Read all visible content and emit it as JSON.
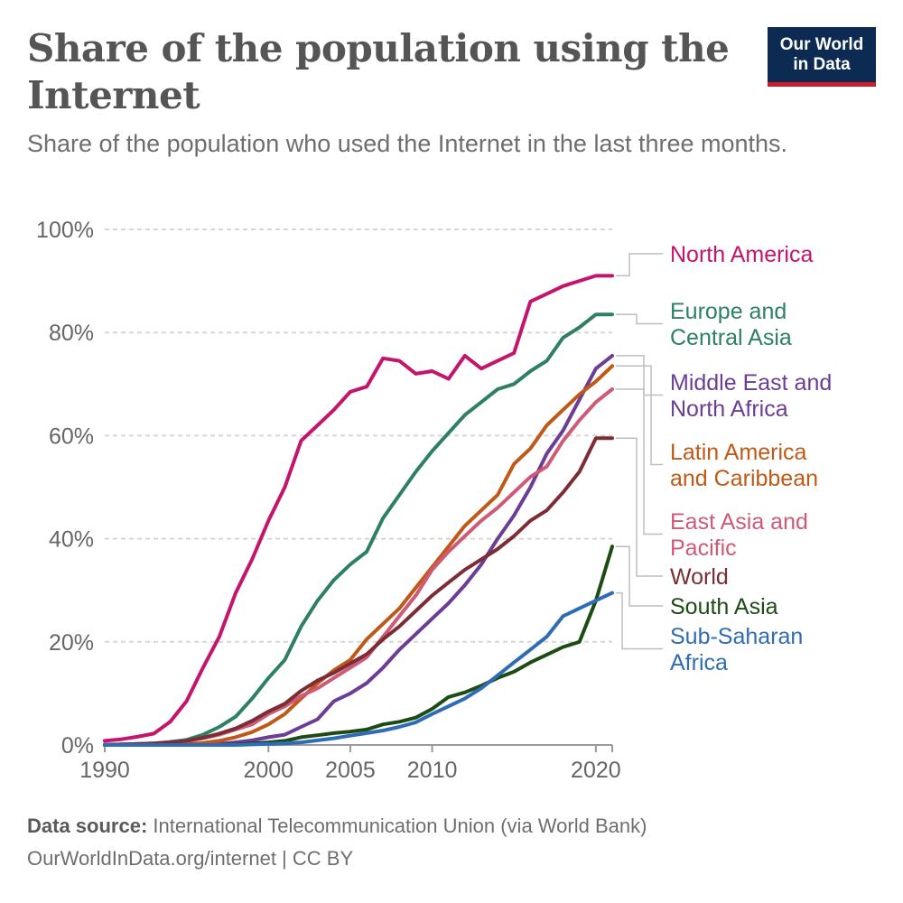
{
  "header": {
    "title": "Share of the population using the Internet",
    "subtitle": "Share of the population who used the Internet in the last three months.",
    "logo_line1": "Our World",
    "logo_line2": "in Data"
  },
  "footer": {
    "source_label": "Data source:",
    "source_text": "International Telecommunication Union (via World Bank)",
    "credit": "OurWorldInData.org/internet | CC BY"
  },
  "chart_data": {
    "type": "line",
    "x_ticks": [
      1990,
      2000,
      2005,
      2010,
      2020
    ],
    "y_ticks": [
      0,
      20,
      40,
      60,
      80,
      100
    ],
    "y_tick_labels": [
      "0%",
      "20%",
      "40%",
      "60%",
      "80%",
      "100%"
    ],
    "xlim": [
      1990,
      2021
    ],
    "ylim": [
      0,
      100
    ],
    "grid": "horizontal dashed",
    "legend": "right, direct labels",
    "series": [
      {
        "name": "North America",
        "color": "#c4146c",
        "x": [
          1990,
          1991,
          1992,
          1993,
          1994,
          1995,
          1996,
          1997,
          1998,
          1999,
          2000,
          2001,
          2002,
          2003,
          2004,
          2005,
          2006,
          2007,
          2008,
          2009,
          2010,
          2011,
          2012,
          2013,
          2014,
          2015,
          2016,
          2017,
          2018,
          2019,
          2020,
          2021
        ],
        "y": [
          0.8,
          1.1,
          1.6,
          2.2,
          4.5,
          8.5,
          15,
          21,
          29.5,
          36,
          43.5,
          50,
          59,
          62,
          65,
          68.5,
          69.5,
          75,
          74.5,
          72,
          72.5,
          71,
          75.5,
          73,
          74.5,
          76,
          86,
          87.5,
          89,
          90,
          91,
          91
        ]
      },
      {
        "name": "Europe and Central Asia",
        "color": "#2e8064",
        "x": [
          1990,
          1991,
          1992,
          1993,
          1994,
          1995,
          1996,
          1997,
          1998,
          1999,
          2000,
          2001,
          2002,
          2003,
          2004,
          2005,
          2006,
          2007,
          2008,
          2009,
          2010,
          2011,
          2012,
          2013,
          2014,
          2015,
          2016,
          2017,
          2018,
          2019,
          2020,
          2021
        ],
        "y": [
          0,
          0.1,
          0.2,
          0.3,
          0.6,
          1,
          2,
          3.5,
          5.5,
          9,
          13,
          16.5,
          23,
          28,
          32,
          35,
          37.5,
          44,
          48.5,
          53,
          57,
          60.5,
          64,
          66.5,
          69,
          70,
          72.5,
          74.5,
          79,
          81,
          83.5,
          83.5
        ]
      },
      {
        "name": "Middle East and North Africa",
        "color": "#6b3d94",
        "x": [
          1990,
          1991,
          1992,
          1993,
          1994,
          1995,
          1996,
          1997,
          1998,
          1999,
          2000,
          2001,
          2002,
          2003,
          2004,
          2005,
          2006,
          2007,
          2008,
          2009,
          2010,
          2011,
          2012,
          2013,
          2014,
          2015,
          2016,
          2017,
          2018,
          2019,
          2020,
          2021
        ],
        "y": [
          0,
          0,
          0,
          0,
          0,
          0,
          0.1,
          0.2,
          0.5,
          0.9,
          1.5,
          2,
          3.5,
          5,
          8.5,
          10,
          12,
          15,
          18.5,
          21.5,
          24.5,
          27.5,
          31,
          35,
          40,
          44.5,
          50,
          56.5,
          61,
          67,
          73,
          75.5
        ]
      },
      {
        "name": "Latin America and Caribbean",
        "color": "#c05917",
        "x": [
          1990,
          1991,
          1992,
          1993,
          1994,
          1995,
          1996,
          1997,
          1998,
          1999,
          2000,
          2001,
          2002,
          2003,
          2004,
          2005,
          2006,
          2007,
          2008,
          2009,
          2010,
          2011,
          2012,
          2013,
          2014,
          2015,
          2016,
          2017,
          2018,
          2019,
          2020,
          2021
        ],
        "y": [
          0,
          0,
          0,
          0,
          0.1,
          0.2,
          0.4,
          0.8,
          1.5,
          2.5,
          4,
          6,
          9,
          12,
          14.5,
          16.5,
          20.5,
          23.5,
          26.5,
          30.5,
          34.5,
          38.5,
          42.5,
          45.5,
          48.5,
          54.5,
          57.5,
          62,
          65,
          68,
          70.5,
          73.5
        ]
      },
      {
        "name": "East Asia and Pacific",
        "color": "#cf5a77",
        "x": [
          1990,
          1991,
          1992,
          1993,
          1994,
          1995,
          1996,
          1997,
          1998,
          1999,
          2000,
          2001,
          2002,
          2003,
          2004,
          2005,
          2006,
          2007,
          2008,
          2009,
          2010,
          2011,
          2012,
          2013,
          2014,
          2015,
          2016,
          2017,
          2018,
          2019,
          2020,
          2021
        ],
        "y": [
          0.1,
          0.1,
          0.2,
          0.3,
          0.5,
          0.8,
          1.3,
          2,
          3,
          4,
          6,
          7.5,
          9.5,
          11,
          13,
          15,
          17,
          21,
          25,
          29,
          34,
          37.5,
          40.5,
          43.5,
          46,
          49,
          52,
          54,
          59,
          63,
          66.5,
          69
        ]
      },
      {
        "name": "World",
        "color": "#7c2c35",
        "x": [
          1990,
          1991,
          1992,
          1993,
          1994,
          1995,
          1996,
          1997,
          1998,
          1999,
          2000,
          2001,
          2002,
          2003,
          2004,
          2005,
          2006,
          2007,
          2008,
          2009,
          2010,
          2011,
          2012,
          2013,
          2014,
          2015,
          2016,
          2017,
          2018,
          2019,
          2020,
          2021
        ],
        "y": [
          0,
          0.1,
          0.2,
          0.3,
          0.5,
          0.8,
          1.4,
          2.2,
          3.2,
          4.7,
          6.5,
          8,
          10.5,
          12.5,
          14,
          15.8,
          17.6,
          20.5,
          23,
          26,
          29,
          31.5,
          34,
          36,
          38,
          40.5,
          43.5,
          45.5,
          49,
          53,
          59.5,
          59.5
        ]
      },
      {
        "name": "South Asia",
        "color": "#1d4b14",
        "x": [
          1990,
          1991,
          1992,
          1993,
          1994,
          1995,
          1996,
          1997,
          1998,
          1999,
          2000,
          2001,
          2002,
          2003,
          2004,
          2005,
          2006,
          2007,
          2008,
          2009,
          2010,
          2011,
          2012,
          2013,
          2014,
          2015,
          2016,
          2017,
          2018,
          2019,
          2020,
          2021
        ],
        "y": [
          0,
          0,
          0,
          0,
          0,
          0,
          0,
          0,
          0.1,
          0.3,
          0.5,
          0.8,
          1.5,
          1.9,
          2.3,
          2.6,
          3,
          4,
          4.5,
          5.3,
          7,
          9.3,
          10.2,
          11.5,
          13,
          14.2,
          16,
          17.5,
          19,
          20,
          28,
          38.5
        ]
      },
      {
        "name": "Sub-Saharan Africa",
        "color": "#2e6db5",
        "x": [
          1990,
          1991,
          1992,
          1993,
          1994,
          1995,
          1996,
          1997,
          1998,
          1999,
          2000,
          2001,
          2002,
          2003,
          2004,
          2005,
          2006,
          2007,
          2008,
          2009,
          2010,
          2011,
          2012,
          2013,
          2014,
          2015,
          2016,
          2017,
          2018,
          2019,
          2020,
          2021
        ],
        "y": [
          0,
          0,
          0,
          0,
          0,
          0,
          0,
          0,
          0,
          0.1,
          0.2,
          0.3,
          0.5,
          0.9,
          1.3,
          1.8,
          2.3,
          2.8,
          3.5,
          4.4,
          6,
          7.5,
          9,
          11,
          13.5,
          16,
          18.5,
          21,
          25,
          26.5,
          28,
          29.5
        ]
      }
    ]
  }
}
